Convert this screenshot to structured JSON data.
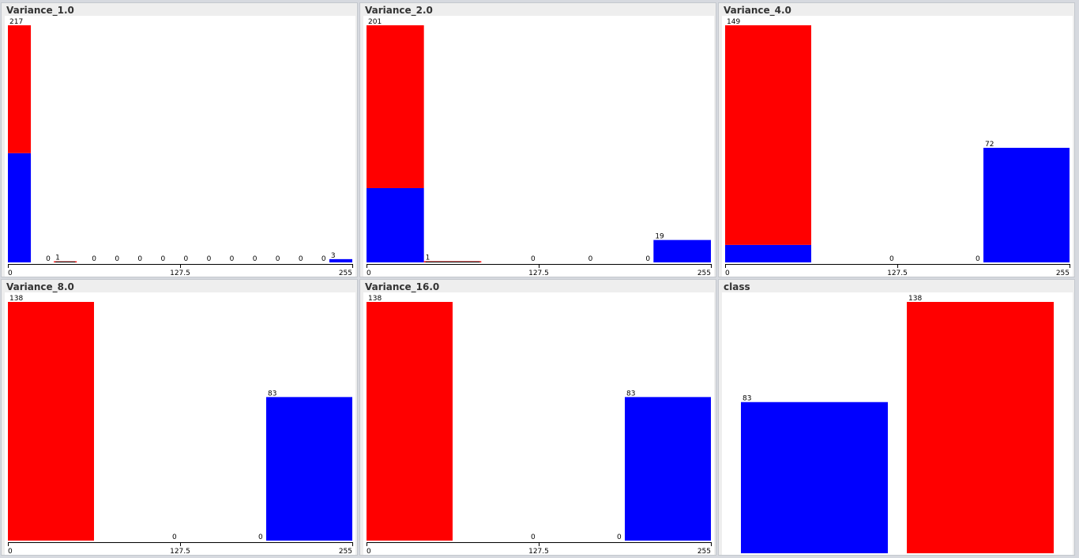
{
  "colors": {
    "class_a": "#0000ff",
    "class_b": "#ff0000",
    "panel_bg": "#eeeeee",
    "plot_bg": "#ffffff"
  },
  "chart_data": [
    {
      "type": "bar",
      "title": "Variance_1.0",
      "xlim": [
        0,
        255
      ],
      "x_ticks": [
        "0",
        "127.5",
        "255"
      ],
      "bins": [
        {
          "total": "217",
          "blue": 100,
          "red": 117
        },
        {
          "total": "0",
          "blue": 0,
          "red": 0
        },
        {
          "total": "1",
          "blue": 0,
          "red": 1
        },
        {
          "total": "0",
          "blue": 0,
          "red": 0
        },
        {
          "total": "0",
          "blue": 0,
          "red": 0
        },
        {
          "total": "0",
          "blue": 0,
          "red": 0
        },
        {
          "total": "0",
          "blue": 0,
          "red": 0
        },
        {
          "total": "0",
          "blue": 0,
          "red": 0
        },
        {
          "total": "0",
          "blue": 0,
          "red": 0
        },
        {
          "total": "0",
          "blue": 0,
          "red": 0
        },
        {
          "total": "0",
          "blue": 0,
          "red": 0
        },
        {
          "total": "0",
          "blue": 0,
          "red": 0
        },
        {
          "total": "0",
          "blue": 0,
          "red": 0
        },
        {
          "total": "0",
          "blue": 0,
          "red": 0
        },
        {
          "total": "3",
          "blue": 3,
          "red": 0
        }
      ]
    },
    {
      "type": "bar",
      "title": "Variance_2.0",
      "xlim": [
        0,
        255
      ],
      "x_ticks": [
        "0",
        "127.5",
        "255"
      ],
      "bins": [
        {
          "total": "201",
          "blue": 63,
          "red": 138
        },
        {
          "total": "1",
          "blue": 0,
          "red": 1
        },
        {
          "total": "0",
          "blue": 0,
          "red": 0
        },
        {
          "total": "0",
          "blue": 0,
          "red": 0
        },
        {
          "total": "0",
          "blue": 0,
          "red": 0
        },
        {
          "total": "19",
          "blue": 19,
          "red": 0
        }
      ]
    },
    {
      "type": "bar",
      "title": "Variance_4.0",
      "xlim": [
        0,
        255
      ],
      "x_ticks": [
        "0",
        "127.5",
        "255"
      ],
      "bins": [
        {
          "total": "149",
          "blue": 11,
          "red": 138
        },
        {
          "total": "0",
          "blue": 0,
          "red": 0
        },
        {
          "total": "0",
          "blue": 0,
          "red": 0
        },
        {
          "total": "72",
          "blue": 72,
          "red": 0
        }
      ]
    },
    {
      "type": "bar",
      "title": "Variance_8.0",
      "xlim": [
        0,
        255
      ],
      "x_ticks": [
        "0",
        "127.5",
        "255"
      ],
      "bins": [
        {
          "total": "138",
          "blue": 0,
          "red": 138
        },
        {
          "total": "0",
          "blue": 0,
          "red": 0
        },
        {
          "total": "0",
          "blue": 0,
          "red": 0
        },
        {
          "total": "83",
          "blue": 83,
          "red": 0
        }
      ]
    },
    {
      "type": "bar",
      "title": "Variance_16.0",
      "xlim": [
        0,
        255
      ],
      "x_ticks": [
        "0",
        "127.5",
        "255"
      ],
      "bins": [
        {
          "total": "138",
          "blue": 0,
          "red": 138
        },
        {
          "total": "0",
          "blue": 0,
          "red": 0
        },
        {
          "total": "0",
          "blue": 0,
          "red": 0
        },
        {
          "total": "83",
          "blue": 83,
          "red": 0
        }
      ]
    },
    {
      "type": "bar",
      "title": "class",
      "categorical": true,
      "bins": [
        {
          "total": "83",
          "blue": 83,
          "red": 0
        },
        {
          "total": "138",
          "blue": 0,
          "red": 138
        }
      ]
    }
  ]
}
